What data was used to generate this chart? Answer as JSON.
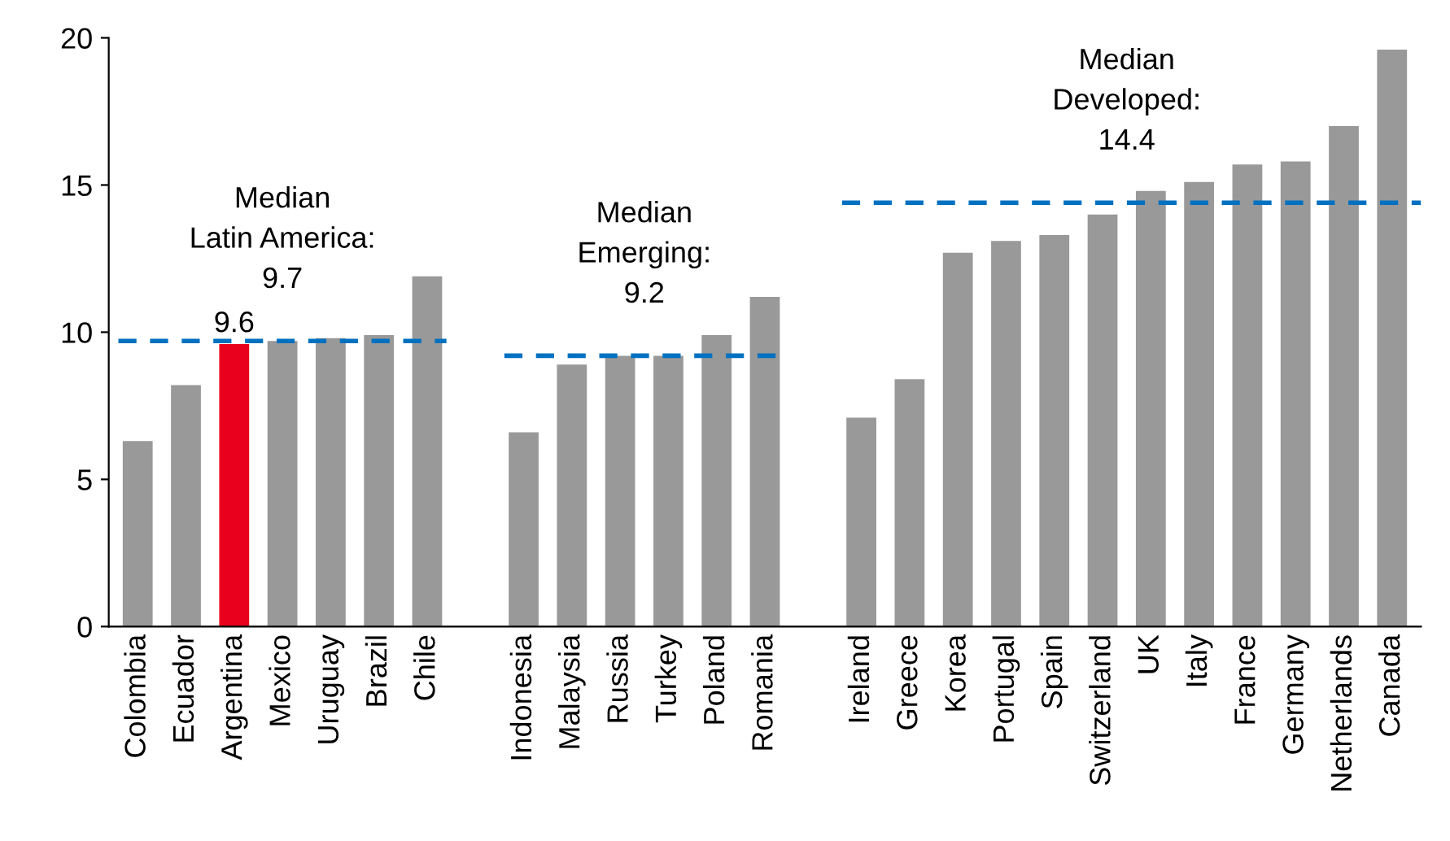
{
  "chart_data": {
    "type": "bar",
    "categories": [
      "Colombia",
      "Ecuador",
      "Argentina",
      "Mexico",
      "Uruguay",
      "Brazil",
      "Chile",
      null,
      "Indonesia",
      "Malaysia",
      "Russia",
      "Turkey",
      "Poland",
      "Romania",
      null,
      "Ireland",
      "Greece",
      "Korea",
      "Portugal",
      "Spain",
      "Switzerland",
      "UK",
      "Italy",
      "France",
      "Germany",
      "Netherlands",
      "Canada"
    ],
    "values": [
      6.3,
      8.2,
      9.6,
      9.7,
      9.8,
      9.9,
      11.9,
      null,
      6.6,
      8.9,
      9.2,
      9.2,
      9.9,
      11.2,
      null,
      7.1,
      8.4,
      12.7,
      13.1,
      13.3,
      14.0,
      14.8,
      15.1,
      15.7,
      15.8,
      17.0,
      19.6
    ],
    "colors": [
      "#999999",
      "#999999",
      "#e8001c",
      "#999999",
      "#999999",
      "#999999",
      "#999999",
      null,
      "#999999",
      "#999999",
      "#999999",
      "#999999",
      "#999999",
      "#999999",
      null,
      "#999999",
      "#999999",
      "#999999",
      "#999999",
      "#999999",
      "#999999",
      "#999999",
      "#999999",
      "#999999",
      "#999999",
      "#999999",
      "#999999"
    ],
    "value_labels": [
      null,
      null,
      "9.6",
      null,
      null,
      null,
      null,
      null,
      null,
      null,
      null,
      null,
      null,
      null,
      null,
      null,
      null,
      null,
      null,
      null,
      null,
      null,
      null,
      null,
      null,
      null,
      null
    ],
    "ylim": [
      0,
      20
    ],
    "yticks": [
      0,
      5,
      10,
      15,
      20
    ],
    "grid": false,
    "legend": false,
    "ref_lines": [
      {
        "axis": "y",
        "value": 9.7,
        "label": "Median\nLatin America:\n9.7",
        "color": "#0070c0",
        "line_style": "dashed"
      },
      {
        "axis": "y",
        "value": 9.2,
        "label": "Median\nEmerging:\n9.2",
        "color": "#0070c0",
        "line_style": "dashed"
      },
      {
        "axis": "y",
        "value": 14.4,
        "label": "Median\nDeveloped:\n14.4",
        "color": "#0070c0",
        "line_style": "dashed"
      }
    ]
  }
}
